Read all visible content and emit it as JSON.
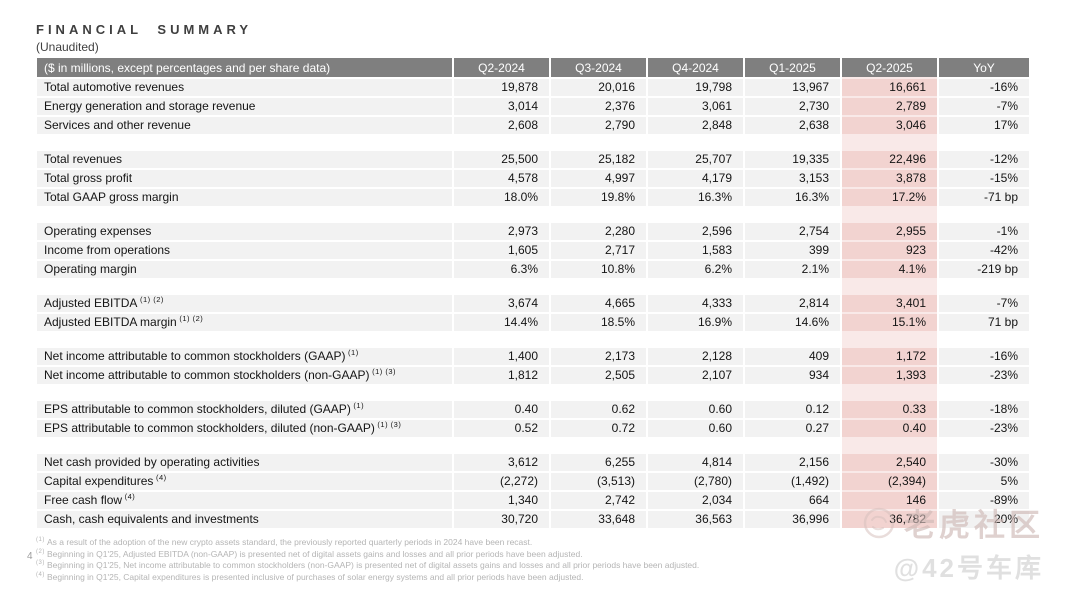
{
  "page": {
    "title": "FINANCIAL SUMMARY",
    "subtitle": "(Unaudited)",
    "page_number": "4"
  },
  "colors": {
    "header_bg": "#7f7f7f",
    "row_bg": "#f2f2f2",
    "highlight_bg": "#f2d3d0",
    "highlight_gap_bg": "#f9e9e8",
    "header_text": "#ffffff"
  },
  "table": {
    "header": [
      "($ in millions, except percentages and per share data)",
      "Q2-2024",
      "Q3-2024",
      "Q4-2024",
      "Q1-2025",
      "Q2-2025",
      "YoY"
    ],
    "highlight_column": "Q2-2025",
    "sections": [
      {
        "rows": [
          {
            "label": "Total automotive revenues",
            "sup": "",
            "values": [
              "19,878",
              "20,016",
              "19,798",
              "13,967",
              "16,661",
              "-16%"
            ]
          },
          {
            "label": "Energy generation and storage revenue",
            "sup": "",
            "values": [
              "3,014",
              "2,376",
              "3,061",
              "2,730",
              "2,789",
              "-7%"
            ]
          },
          {
            "label": "Services and other revenue",
            "sup": "",
            "values": [
              "2,608",
              "2,790",
              "2,848",
              "2,638",
              "3,046",
              "17%"
            ]
          }
        ]
      },
      {
        "rows": [
          {
            "label": "Total revenues",
            "sup": "",
            "values": [
              "25,500",
              "25,182",
              "25,707",
              "19,335",
              "22,496",
              "-12%"
            ]
          },
          {
            "label": "Total gross profit",
            "sup": "",
            "values": [
              "4,578",
              "4,997",
              "4,179",
              "3,153",
              "3,878",
              "-15%"
            ]
          },
          {
            "label": "Total GAAP gross margin",
            "sup": "",
            "values": [
              "18.0%",
              "19.8%",
              "16.3%",
              "16.3%",
              "17.2%",
              "-71 bp"
            ]
          }
        ]
      },
      {
        "rows": [
          {
            "label": "Operating expenses",
            "sup": "",
            "values": [
              "2,973",
              "2,280",
              "2,596",
              "2,754",
              "2,955",
              "-1%"
            ]
          },
          {
            "label": "Income from operations",
            "sup": "",
            "values": [
              "1,605",
              "2,717",
              "1,583",
              "399",
              "923",
              "-42%"
            ]
          },
          {
            "label": "Operating margin",
            "sup": "",
            "values": [
              "6.3%",
              "10.8%",
              "6.2%",
              "2.1%",
              "4.1%",
              "-219 bp"
            ]
          }
        ]
      },
      {
        "rows": [
          {
            "label": "Adjusted EBITDA",
            "sup": "(1) (2)",
            "values": [
              "3,674",
              "4,665",
              "4,333",
              "2,814",
              "3,401",
              "-7%"
            ]
          },
          {
            "label": "Adjusted EBITDA margin",
            "sup": "(1) (2)",
            "values": [
              "14.4%",
              "18.5%",
              "16.9%",
              "14.6%",
              "15.1%",
              "71 bp"
            ]
          }
        ]
      },
      {
        "rows": [
          {
            "label": "Net income attributable to common stockholders (GAAP)",
            "sup": "(1)",
            "values": [
              "1,400",
              "2,173",
              "2,128",
              "409",
              "1,172",
              "-16%"
            ]
          },
          {
            "label": "Net income attributable to common stockholders (non-GAAP)",
            "sup": "(1) (3)",
            "values": [
              "1,812",
              "2,505",
              "2,107",
              "934",
              "1,393",
              "-23%"
            ]
          }
        ]
      },
      {
        "rows": [
          {
            "label": "EPS attributable to common stockholders, diluted (GAAP)",
            "sup": "(1)",
            "values": [
              "0.40",
              "0.62",
              "0.60",
              "0.12",
              "0.33",
              "-18%"
            ]
          },
          {
            "label": "EPS attributable to common stockholders, diluted (non-GAAP)",
            "sup": "(1) (3)",
            "values": [
              "0.52",
              "0.72",
              "0.60",
              "0.27",
              "0.40",
              "-23%"
            ]
          }
        ]
      },
      {
        "rows": [
          {
            "label": "Net cash provided by operating activities",
            "sup": "",
            "values": [
              "3,612",
              "6,255",
              "4,814",
              "2,156",
              "2,540",
              "-30%"
            ]
          },
          {
            "label": "Capital expenditures",
            "sup": "(4)",
            "values": [
              "(2,272)",
              "(3,513)",
              "(2,780)",
              "(1,492)",
              "(2,394)",
              "5%"
            ]
          },
          {
            "label": "Free cash flow",
            "sup": "(4)",
            "values": [
              "1,340",
              "2,742",
              "2,034",
              "664",
              "146",
              "-89%"
            ]
          },
          {
            "label": "Cash, cash equivalents and investments",
            "sup": "",
            "values": [
              "30,720",
              "33,648",
              "36,563",
              "36,996",
              "36,782",
              "20%"
            ]
          }
        ]
      }
    ]
  },
  "footnotes": [
    {
      "sup": "(1)",
      "text": "As a result of the adoption of the new crypto assets standard, the previously reported quarterly periods in 2024 have been recast."
    },
    {
      "sup": "(2)",
      "text": "Beginning in Q1'25, Adjusted EBITDA (non-GAAP) is presented net of digital assets gains and losses and all prior periods have been adjusted."
    },
    {
      "sup": "(3)",
      "text": "Beginning in Q1'25, Net income attributable to common stockholders (non-GAAP) is presented net of digital assets gains and losses and all prior periods have been adjusted."
    },
    {
      "sup": "(4)",
      "text": "Beginning in Q1'25, Capital expenditures is presented inclusive of purchases of solar energy systems and all prior periods have been adjusted."
    }
  ],
  "watermark": {
    "community": "老虎社区",
    "handle": "@42号车库",
    "logo": "tiger-logo-icon"
  }
}
